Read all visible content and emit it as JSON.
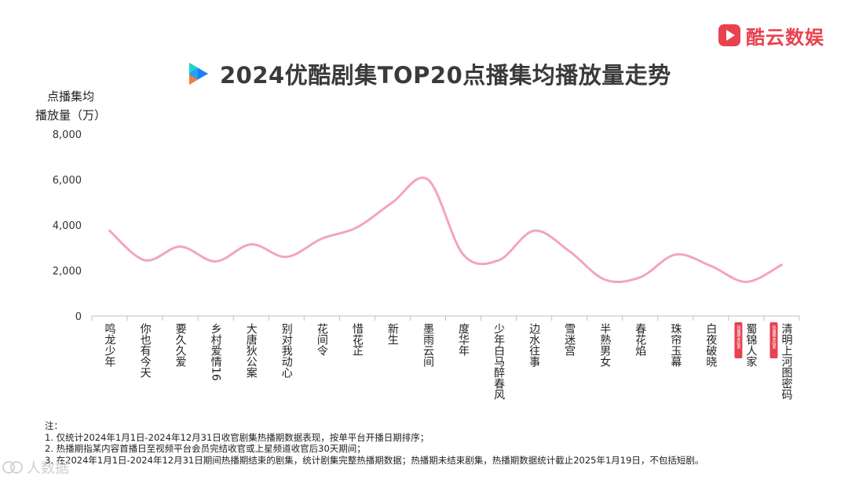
{
  "brand": {
    "name": "酷云数娱",
    "logo_icon": "play-icon"
  },
  "title": "2024优酷剧集TOP20点播集均播放量走势",
  "chart_data": {
    "type": "line",
    "title": "2024优酷剧集TOP20点播集均播放量走势",
    "ylabel_lines": [
      "点播集均",
      "播放量（万）"
    ],
    "xlabel": "",
    "ylim": [
      0,
      8000
    ],
    "yticks": [
      0,
      2000,
      4000,
      6000,
      8000
    ],
    "ytick_labels": [
      "0",
      "2,000",
      "4,000",
      "6,000",
      "8,000"
    ],
    "grid": false,
    "line_color": "#f4a3c4",
    "badge_color": "#e8424f",
    "categories": [
      "鸣龙少年",
      "你也有今天",
      "要久久爱",
      "乡村爱情16",
      "大唐狄公案",
      "别对我动心",
      "花间令",
      "惜花芷",
      "新生",
      "墨雨云间",
      "度华年",
      "少年白马醉春风",
      "边水往事",
      "雪迷宫",
      "半熟男女",
      "春花焰",
      "珠帘玉幕",
      "白夜破晓",
      "蜀锦人家",
      "清明上河图密码"
    ],
    "series": [
      {
        "values": [
          3750,
          2450,
          3050,
          2400,
          3150,
          2600,
          3400,
          3900,
          5000,
          6000,
          2700,
          2450,
          3750,
          2850,
          1600,
          1700,
          2700,
          2200,
          1500,
          2250
        ]
      }
    ],
    "badges": [
      {
        "index": 18,
        "text": "热播期未结束"
      },
      {
        "index": 19,
        "text": "热播期未结束"
      }
    ]
  },
  "notes": {
    "title": "注：",
    "lines": [
      "1. 仅统计2024年1月1日-2024年12月31日收官剧集热播期数据表现，按单平台开播日期排序；",
      "2. 热播期指某内容首播日至视频平台会员完结收官或上星频道收官后30天期间；",
      "3. 在2024年1月1日-2024年12月31日期间热播期结束的剧集，统计剧集完整热播期数据；热播期未结束剧集，热播期数据统计截止2025年1月19日，不包括短剧。"
    ]
  },
  "watermark": "人数据"
}
